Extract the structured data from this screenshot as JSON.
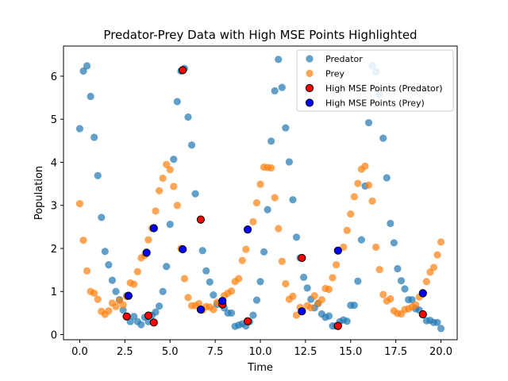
{
  "chart_data": {
    "type": "scatter",
    "title": "Predator-Prey Data with High MSE Points Highlighted",
    "xlabel": "Time",
    "ylabel": "Population",
    "xlim": [
      -0.9,
      20.9
    ],
    "ylim": [
      -0.12,
      6.7
    ],
    "xticks": [
      0.0,
      2.5,
      5.0,
      7.5,
      10.0,
      12.5,
      15.0,
      17.5,
      20.0
    ],
    "xtick_labels": [
      "0.0",
      "2.5",
      "5.0",
      "7.5",
      "10.0",
      "12.5",
      "15.0",
      "17.5",
      "20.0"
    ],
    "yticks": [
      0,
      1,
      2,
      3,
      4,
      5,
      6
    ],
    "ytick_labels": [
      "0",
      "1",
      "2",
      "3",
      "4",
      "5",
      "6"
    ],
    "grid": false,
    "legend_position": "top-right",
    "series": [
      {
        "name": "Predator",
        "color": "#1f77b4",
        "opacity": 0.7,
        "edge": "none",
        "points": [
          [
            0.0,
            4.78
          ],
          [
            0.2,
            6.12
          ],
          [
            0.4,
            6.24
          ],
          [
            0.6,
            5.53
          ],
          [
            0.8,
            4.58
          ],
          [
            1.0,
            3.69
          ],
          [
            1.2,
            2.72
          ],
          [
            1.4,
            1.93
          ],
          [
            1.6,
            1.62
          ],
          [
            1.8,
            1.26
          ],
          [
            2.0,
            1.0
          ],
          [
            2.2,
            0.81
          ],
          [
            2.4,
            0.57
          ],
          [
            2.6,
            0.9
          ],
          [
            2.8,
            0.3
          ],
          [
            3.0,
            0.42
          ],
          [
            3.2,
            0.3
          ],
          [
            3.4,
            0.23
          ],
          [
            3.6,
            0.4
          ],
          [
            3.8,
            0.3
          ],
          [
            4.0,
            0.45
          ],
          [
            4.2,
            0.52
          ],
          [
            4.4,
            0.66
          ],
          [
            4.6,
            1.0
          ],
          [
            4.8,
            1.58
          ],
          [
            5.0,
            2.56
          ],
          [
            5.2,
            4.07
          ],
          [
            5.4,
            5.41
          ],
          [
            5.6,
            6.12
          ],
          [
            5.8,
            6.18
          ],
          [
            6.0,
            5.05
          ],
          [
            6.2,
            4.4
          ],
          [
            6.4,
            3.27
          ],
          [
            6.8,
            1.95
          ],
          [
            7.0,
            1.48
          ],
          [
            7.2,
            1.22
          ],
          [
            7.4,
            0.92
          ],
          [
            7.6,
            0.7
          ],
          [
            8.0,
            0.62
          ],
          [
            8.2,
            0.5
          ],
          [
            8.4,
            0.5
          ],
          [
            8.6,
            0.19
          ],
          [
            8.8,
            0.22
          ],
          [
            9.0,
            0.25
          ],
          [
            9.2,
            0.2
          ],
          [
            9.4,
            0.3
          ],
          [
            9.6,
            0.45
          ],
          [
            9.8,
            0.8
          ],
          [
            10.0,
            1.23
          ],
          [
            10.2,
            1.92
          ],
          [
            10.4,
            2.9
          ],
          [
            10.6,
            4.49
          ],
          [
            10.8,
            5.66
          ],
          [
            11.0,
            6.39
          ],
          [
            11.2,
            5.74
          ],
          [
            11.4,
            4.8
          ],
          [
            11.6,
            4.01
          ],
          [
            11.8,
            3.13
          ],
          [
            12.0,
            2.26
          ],
          [
            12.2,
            1.78
          ],
          [
            12.4,
            1.33
          ],
          [
            12.6,
            1.08
          ],
          [
            12.8,
            0.82
          ],
          [
            13.0,
            0.62
          ],
          [
            13.2,
            0.72
          ],
          [
            13.4,
            0.48
          ],
          [
            13.6,
            0.4
          ],
          [
            13.8,
            0.43
          ],
          [
            14.0,
            0.2
          ],
          [
            14.2,
            0.2
          ],
          [
            14.4,
            0.3
          ],
          [
            14.6,
            0.34
          ],
          [
            14.8,
            0.31
          ],
          [
            15.0,
            0.68
          ],
          [
            15.2,
            0.68
          ],
          [
            15.4,
            1.24
          ],
          [
            15.6,
            2.2
          ],
          [
            15.8,
            3.45
          ],
          [
            16.0,
            4.92
          ],
          [
            16.2,
            6.24
          ],
          [
            16.4,
            6.1
          ],
          [
            16.6,
            5.57
          ],
          [
            16.8,
            4.56
          ],
          [
            17.0,
            3.64
          ],
          [
            17.2,
            2.58
          ],
          [
            17.4,
            2.13
          ],
          [
            17.6,
            1.53
          ],
          [
            17.8,
            1.25
          ],
          [
            18.0,
            1.06
          ],
          [
            18.2,
            0.81
          ],
          [
            18.4,
            0.81
          ],
          [
            18.6,
            0.6
          ],
          [
            18.8,
            0.57
          ],
          [
            19.0,
            0.47
          ],
          [
            19.2,
            0.32
          ],
          [
            19.4,
            0.33
          ],
          [
            19.6,
            0.28
          ],
          [
            19.8,
            0.28
          ],
          [
            20.0,
            0.14
          ]
        ]
      },
      {
        "name": "Prey",
        "color": "#ff7f0e",
        "opacity": 0.7,
        "edge": "none",
        "points": [
          [
            0.0,
            3.04
          ],
          [
            0.2,
            2.19
          ],
          [
            0.4,
            1.48
          ],
          [
            0.6,
            1.0
          ],
          [
            0.8,
            0.96
          ],
          [
            1.0,
            0.82
          ],
          [
            1.2,
            0.54
          ],
          [
            1.4,
            0.47
          ],
          [
            1.6,
            0.55
          ],
          [
            1.8,
            0.73
          ],
          [
            2.0,
            0.65
          ],
          [
            2.2,
            0.79
          ],
          [
            2.4,
            0.69
          ],
          [
            2.6,
            0.88
          ],
          [
            2.8,
            1.2
          ],
          [
            3.0,
            1.17
          ],
          [
            3.2,
            1.46
          ],
          [
            3.4,
            1.78
          ],
          [
            3.6,
            1.84
          ],
          [
            3.8,
            2.2
          ],
          [
            4.0,
            2.47
          ],
          [
            4.2,
            2.87
          ],
          [
            4.4,
            3.34
          ],
          [
            4.6,
            3.63
          ],
          [
            4.8,
            3.95
          ],
          [
            5.0,
            3.83
          ],
          [
            5.2,
            3.44
          ],
          [
            5.4,
            3.0
          ],
          [
            5.6,
            2.0
          ],
          [
            5.8,
            1.3
          ],
          [
            6.0,
            0.86
          ],
          [
            6.2,
            0.67
          ],
          [
            6.4,
            0.67
          ],
          [
            6.6,
            0.72
          ],
          [
            6.8,
            0.57
          ],
          [
            7.0,
            0.65
          ],
          [
            7.2,
            0.64
          ],
          [
            7.4,
            0.58
          ],
          [
            7.6,
            0.75
          ],
          [
            7.8,
            0.72
          ],
          [
            8.0,
            0.9
          ],
          [
            8.2,
            0.96
          ],
          [
            8.4,
            1.01
          ],
          [
            8.6,
            1.23
          ],
          [
            8.8,
            1.3
          ],
          [
            9.0,
            1.72
          ],
          [
            9.2,
            1.98
          ],
          [
            9.6,
            2.62
          ],
          [
            9.8,
            3.06
          ],
          [
            10.0,
            3.49
          ],
          [
            10.2,
            3.89
          ],
          [
            10.4,
            3.88
          ],
          [
            10.6,
            3.87
          ],
          [
            10.8,
            3.18
          ],
          [
            11.0,
            2.46
          ],
          [
            11.2,
            1.7
          ],
          [
            11.4,
            1.18
          ],
          [
            11.6,
            0.82
          ],
          [
            11.8,
            0.89
          ],
          [
            12.0,
            0.45
          ],
          [
            12.2,
            0.63
          ],
          [
            12.6,
            0.67
          ],
          [
            12.8,
            0.62
          ],
          [
            13.0,
            0.9
          ],
          [
            13.2,
            0.73
          ],
          [
            13.4,
            0.81
          ],
          [
            13.6,
            1.07
          ],
          [
            13.8,
            1.05
          ],
          [
            14.0,
            1.32
          ],
          [
            14.2,
            1.62
          ],
          [
            14.6,
            2.03
          ],
          [
            14.8,
            2.42
          ],
          [
            15.0,
            2.8
          ],
          [
            15.2,
            3.2
          ],
          [
            15.4,
            3.51
          ],
          [
            15.6,
            3.84
          ],
          [
            15.8,
            3.91
          ],
          [
            16.0,
            3.47
          ],
          [
            16.2,
            3.1
          ],
          [
            16.4,
            2.03
          ],
          [
            16.6,
            1.51
          ],
          [
            16.8,
            0.93
          ],
          [
            17.0,
            0.78
          ],
          [
            17.2,
            0.83
          ],
          [
            17.4,
            0.55
          ],
          [
            17.6,
            0.49
          ],
          [
            17.8,
            0.48
          ],
          [
            18.0,
            0.58
          ],
          [
            18.2,
            0.6
          ],
          [
            18.4,
            0.64
          ],
          [
            18.6,
            0.69
          ],
          [
            18.8,
            0.87
          ],
          [
            19.0,
            0.94
          ],
          [
            19.2,
            1.23
          ],
          [
            19.4,
            1.45
          ],
          [
            19.6,
            1.56
          ],
          [
            19.8,
            1.85
          ],
          [
            20.0,
            2.15
          ]
        ]
      },
      {
        "name": "High MSE Points (Predator)",
        "color": "#ff0000",
        "opacity": 1.0,
        "edge": "#000000",
        "points": [
          [
            2.6,
            0.42
          ],
          [
            3.8,
            0.44
          ],
          [
            4.1,
            0.28
          ],
          [
            5.7,
            6.14
          ],
          [
            6.7,
            2.67
          ],
          [
            7.9,
            0.7
          ],
          [
            9.3,
            0.31
          ],
          [
            12.3,
            1.78
          ],
          [
            14.3,
            0.2
          ],
          [
            19.0,
            0.47
          ]
        ]
      },
      {
        "name": "High MSE Points (Prey)",
        "color": "#0000ff",
        "opacity": 1.0,
        "edge": "#000000",
        "points": [
          [
            2.7,
            0.9
          ],
          [
            3.7,
            1.9
          ],
          [
            4.1,
            2.47
          ],
          [
            5.7,
            1.98
          ],
          [
            6.7,
            0.58
          ],
          [
            7.9,
            0.78
          ],
          [
            9.3,
            2.44
          ],
          [
            12.3,
            0.54
          ],
          [
            14.3,
            1.95
          ],
          [
            19.0,
            0.96
          ]
        ]
      }
    ]
  }
}
